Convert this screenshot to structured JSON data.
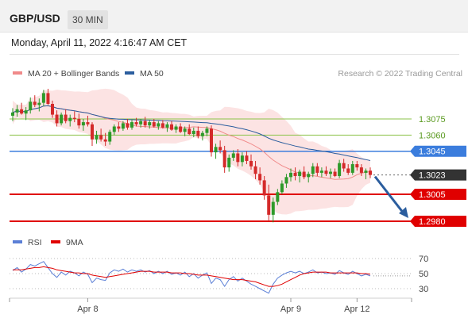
{
  "header": {
    "symbol": "GBP/USD",
    "timeframe": "30 MIN"
  },
  "datetime": "Monday, April 11, 2022 4:16:47 AM CET",
  "legend": {
    "bollinger": "MA 20 + Bollinger Bands",
    "ma50": "MA 50",
    "rsi": "RSI",
    "rsi_ma": "9MA"
  },
  "credit": "Research © 2022 Trading Central",
  "colors": {
    "up": "#2e9a2a",
    "down": "#d42a2a",
    "ma50": "#2b5d9e",
    "bollinger_fill": "#fbdada",
    "ma20": "#f08a8a",
    "resistance": "#8bc34a",
    "pivot": "#3b7ddd",
    "support": "#e00000",
    "arrow": "#2b5d9e",
    "rsi": "#5b7fd6",
    "rsi_ma": "#e00000",
    "price_tag": "#333333"
  },
  "levels": [
    {
      "value": "1.3075",
      "kind": "resistance"
    },
    {
      "value": "1.3060",
      "kind": "resistance"
    },
    {
      "value": "1.3045",
      "kind": "pivot"
    },
    {
      "value": "1.3023",
      "kind": "current"
    },
    {
      "value": "1.3005",
      "kind": "support"
    },
    {
      "value": "1.2980",
      "kind": "support"
    }
  ],
  "rsi_ticks": [
    "70",
    "50",
    "30"
  ],
  "x_ticks": [
    "Apr 8",
    "Apr 9",
    "Apr 12"
  ],
  "chart_data": {
    "type": "candlestick",
    "price_range": [
      1.2975,
      1.3105
    ],
    "rsi_range": [
      20,
      80
    ],
    "candles": [
      [
        1.3078,
        1.3085,
        1.3073,
        1.3081
      ],
      [
        1.3081,
        1.3088,
        1.3077,
        1.3084
      ],
      [
        1.3084,
        1.309,
        1.3079,
        1.308
      ],
      [
        1.308,
        1.3086,
        1.3074,
        1.3083
      ],
      [
        1.3083,
        1.3095,
        1.308,
        1.3091
      ],
      [
        1.3091,
        1.3097,
        1.3086,
        1.3088
      ],
      [
        1.3088,
        1.3094,
        1.3082,
        1.309
      ],
      [
        1.309,
        1.3102,
        1.3087,
        1.3099
      ],
      [
        1.3099,
        1.3103,
        1.3088,
        1.3089
      ],
      [
        1.3089,
        1.3092,
        1.3076,
        1.3079
      ],
      [
        1.3079,
        1.3083,
        1.3068,
        1.3071
      ],
      [
        1.3071,
        1.3081,
        1.3069,
        1.3079
      ],
      [
        1.3079,
        1.3084,
        1.3071,
        1.3073
      ],
      [
        1.3073,
        1.3079,
        1.3068,
        1.3076
      ],
      [
        1.3076,
        1.3082,
        1.3072,
        1.3075
      ],
      [
        1.3075,
        1.308,
        1.3066,
        1.3069
      ],
      [
        1.3069,
        1.3075,
        1.3064,
        1.3072
      ],
      [
        1.3072,
        1.3078,
        1.3068,
        1.307
      ],
      [
        1.307,
        1.3072,
        1.305,
        1.3056
      ],
      [
        1.3056,
        1.3064,
        1.3052,
        1.306
      ],
      [
        1.306,
        1.3066,
        1.3054,
        1.3056
      ],
      [
        1.3056,
        1.3062,
        1.305,
        1.3054
      ],
      [
        1.3054,
        1.3065,
        1.3051,
        1.3063
      ],
      [
        1.3063,
        1.307,
        1.306,
        1.3068
      ],
      [
        1.3068,
        1.3072,
        1.3063,
        1.3066
      ],
      [
        1.3066,
        1.3073,
        1.3064,
        1.3071
      ],
      [
        1.3071,
        1.3075,
        1.3065,
        1.3067
      ],
      [
        1.3067,
        1.3074,
        1.3065,
        1.3072
      ],
      [
        1.3072,
        1.3076,
        1.3068,
        1.307
      ],
      [
        1.307,
        1.3075,
        1.3067,
        1.3073
      ],
      [
        1.3073,
        1.3077,
        1.3067,
        1.3069
      ],
      [
        1.3069,
        1.3074,
        1.3066,
        1.3072
      ],
      [
        1.3072,
        1.3075,
        1.3067,
        1.3068
      ],
      [
        1.3068,
        1.3073,
        1.3065,
        1.3071
      ],
      [
        1.3071,
        1.3074,
        1.3066,
        1.3067
      ],
      [
        1.3067,
        1.3072,
        1.3063,
        1.307
      ],
      [
        1.307,
        1.3073,
        1.3064,
        1.3065
      ],
      [
        1.3065,
        1.307,
        1.3062,
        1.3068
      ],
      [
        1.3068,
        1.3071,
        1.3062,
        1.3063
      ],
      [
        1.3063,
        1.3068,
        1.3059,
        1.3066
      ],
      [
        1.3066,
        1.307,
        1.306,
        1.3061
      ],
      [
        1.3061,
        1.3067,
        1.3058,
        1.3064
      ],
      [
        1.3064,
        1.3068,
        1.3057,
        1.3059
      ],
      [
        1.3059,
        1.3064,
        1.3055,
        1.3062
      ],
      [
        1.3062,
        1.3068,
        1.3059,
        1.3066
      ],
      [
        1.3066,
        1.3069,
        1.304,
        1.3044
      ],
      [
        1.3044,
        1.3052,
        1.3038,
        1.3049
      ],
      [
        1.3049,
        1.3055,
        1.3043,
        1.3046
      ],
      [
        1.3046,
        1.305,
        1.3025,
        1.303
      ],
      [
        1.303,
        1.3042,
        1.3026,
        1.3039
      ],
      [
        1.3039,
        1.3046,
        1.3036,
        1.3043
      ],
      [
        1.3043,
        1.3047,
        1.3031,
        1.3035
      ],
      [
        1.3035,
        1.3044,
        1.3031,
        1.3041
      ],
      [
        1.3041,
        1.3045,
        1.3033,
        1.3036
      ],
      [
        1.3036,
        1.3042,
        1.3028,
        1.3031
      ],
      [
        1.3031,
        1.3036,
        1.3019,
        1.3024
      ],
      [
        1.3024,
        1.303,
        1.3014,
        1.3018
      ],
      [
        1.3018,
        1.3022,
        1.3,
        1.3004
      ],
      [
        1.3004,
        1.3014,
        1.298,
        1.2986
      ],
      [
        1.2986,
        1.3002,
        1.2979,
        1.2998
      ],
      [
        1.2998,
        1.301,
        1.2995,
        1.3007
      ],
      [
        1.3007,
        1.3018,
        1.3005,
        1.3015
      ],
      [
        1.3015,
        1.3024,
        1.3011,
        1.3021
      ],
      [
        1.3021,
        1.3029,
        1.3017,
        1.3025
      ],
      [
        1.3025,
        1.303,
        1.3018,
        1.3022
      ],
      [
        1.3022,
        1.3028,
        1.3016,
        1.3026
      ],
      [
        1.3026,
        1.3031,
        1.3019,
        1.3021
      ],
      [
        1.3021,
        1.3026,
        1.3016,
        1.3024
      ],
      [
        1.3024,
        1.3034,
        1.3021,
        1.3031
      ],
      [
        1.3031,
        1.3034,
        1.3022,
        1.3025
      ],
      [
        1.3025,
        1.303,
        1.3021,
        1.3027
      ],
      [
        1.3027,
        1.3031,
        1.3022,
        1.3024
      ],
      [
        1.3024,
        1.3029,
        1.302,
        1.3026
      ],
      [
        1.3026,
        1.3029,
        1.3021,
        1.3022
      ],
      [
        1.3022,
        1.3037,
        1.302,
        1.3034
      ],
      [
        1.3034,
        1.3038,
        1.3026,
        1.3029
      ],
      [
        1.3029,
        1.3033,
        1.3023,
        1.3025
      ],
      [
        1.3025,
        1.3036,
        1.3023,
        1.3033
      ],
      [
        1.3033,
        1.3036,
        1.3027,
        1.303
      ],
      [
        1.303,
        1.3033,
        1.3022,
        1.3025
      ],
      [
        1.3025,
        1.3029,
        1.3019,
        1.3027
      ],
      [
        1.3027,
        1.303,
        1.302,
        1.3023
      ]
    ],
    "rsi": [
      54,
      58,
      52,
      56,
      62,
      60,
      63,
      66,
      58,
      50,
      45,
      52,
      48,
      53,
      51,
      47,
      52,
      49,
      38,
      44,
      42,
      41,
      51,
      55,
      53,
      56,
      52,
      55,
      53,
      55,
      52,
      54,
      50,
      53,
      50,
      53,
      49,
      51,
      48,
      52,
      46,
      50,
      44,
      48,
      51,
      37,
      44,
      42,
      33,
      42,
      46,
      40,
      44,
      40,
      36,
      33,
      30,
      27,
      24,
      36,
      44,
      48,
      51,
      53,
      51,
      53,
      50,
      52,
      55,
      51,
      52,
      50,
      51,
      49,
      54,
      51,
      49,
      53,
      50,
      47,
      49,
      47
    ],
    "rsi_ma": [
      55,
      55,
      55,
      56,
      57,
      58,
      58,
      59,
      58,
      57,
      55,
      54,
      53,
      52,
      51,
      51,
      50,
      50,
      48,
      47,
      46,
      45,
      46,
      47,
      48,
      49,
      50,
      51,
      52,
      53,
      53,
      53,
      52,
      52,
      52,
      52,
      51,
      51,
      51,
      50,
      50,
      49,
      48,
      48,
      48,
      47,
      46,
      45,
      44,
      43,
      42,
      42,
      42,
      41,
      40,
      39,
      37,
      35,
      33,
      33,
      34,
      36,
      39,
      42,
      45,
      48,
      50,
      51,
      52,
      52,
      52,
      52,
      51,
      51,
      51,
      51,
      51,
      51,
      51,
      50,
      50,
      49
    ],
    "projection_target": 1.298
  }
}
